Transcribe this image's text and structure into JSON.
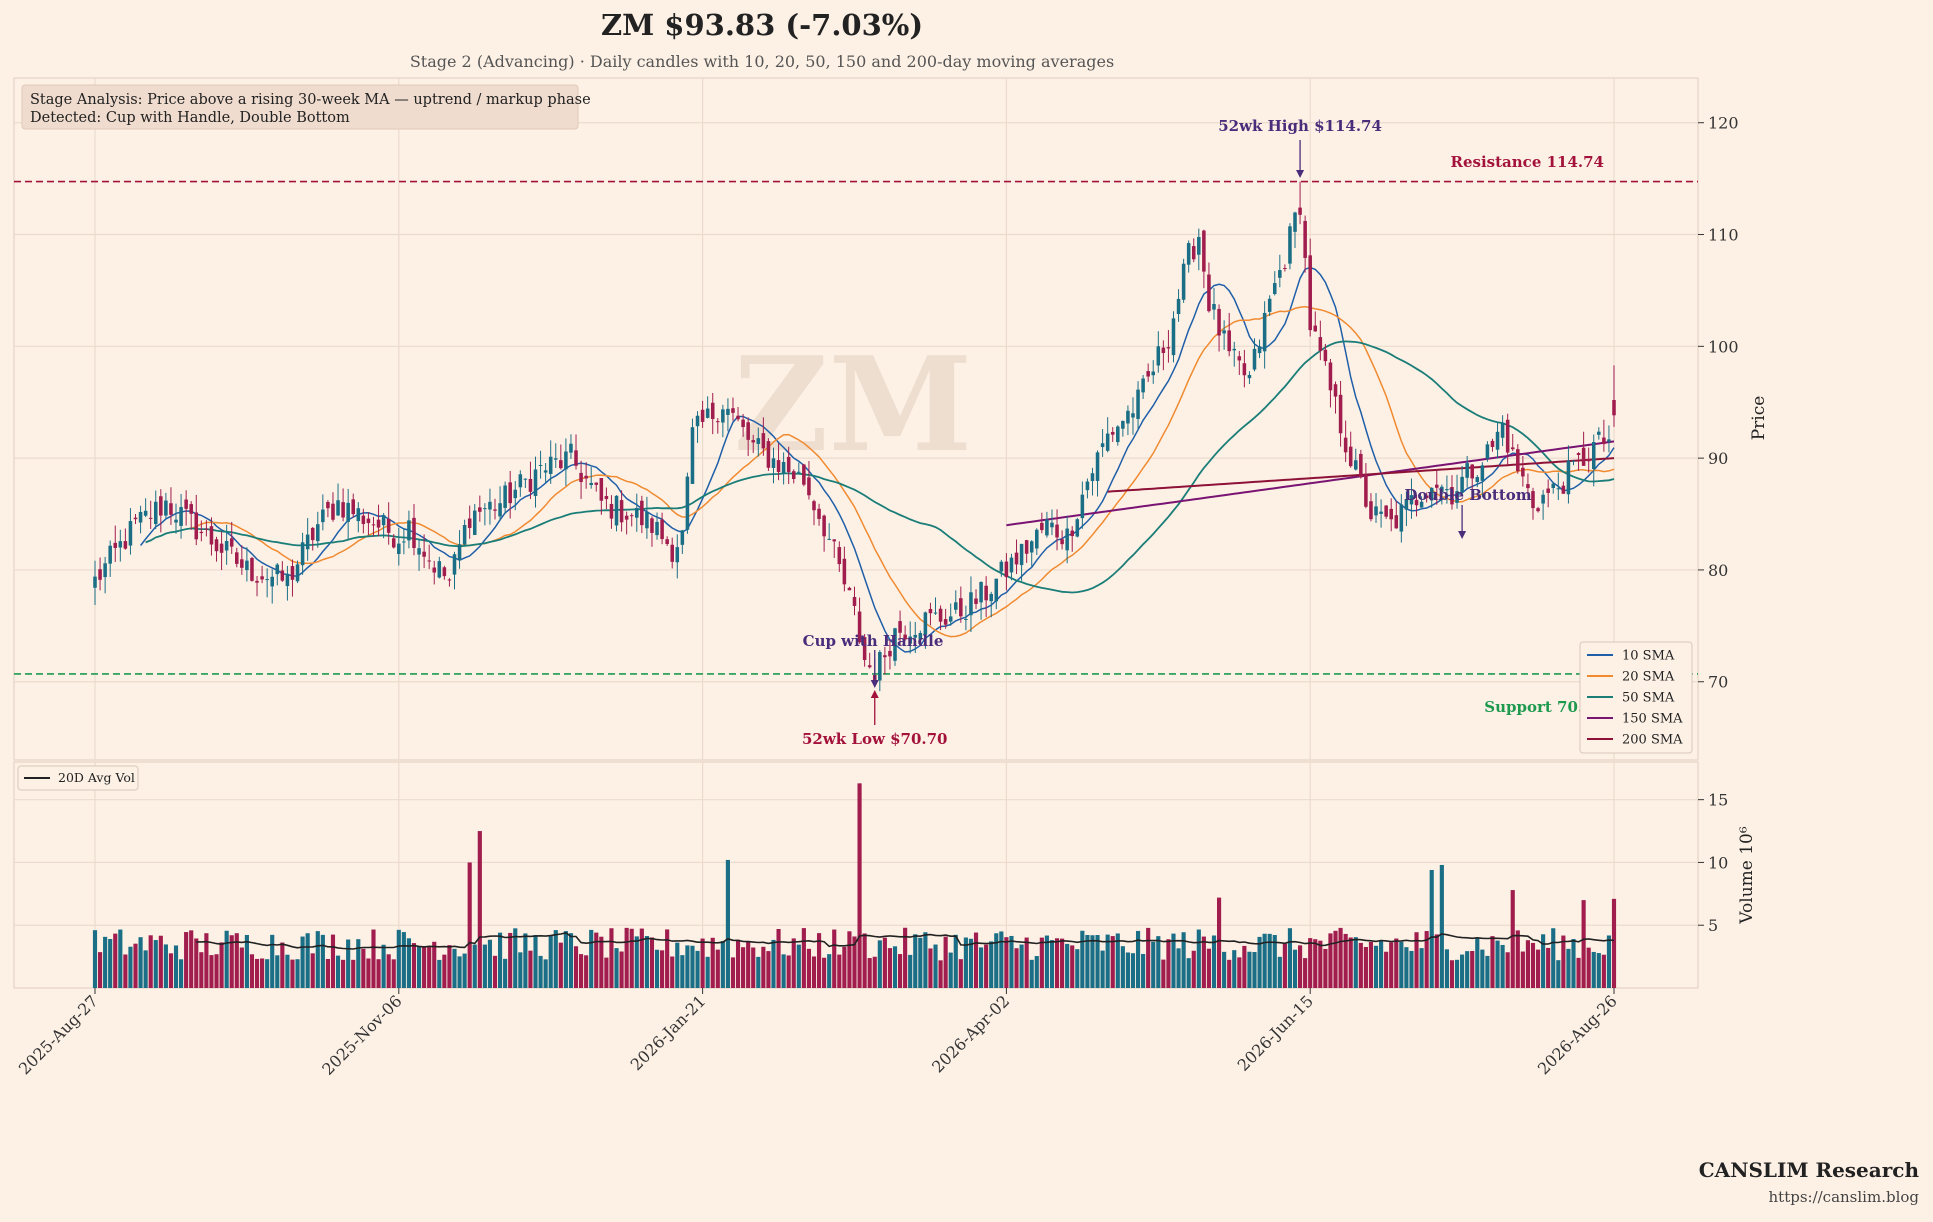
{
  "header": {
    "title": "ZM  $93.83  (-7.03%)",
    "subtitle": "Stage 2 (Advancing)  ·  Daily candles with 10, 20, 50, 150 and 200-day moving averages"
  },
  "stage_box": {
    "line1": "Stage Analysis: Price above a rising 30-week MA — uptrend / markup phase",
    "line2": "Detected: Cup with Handle, Double Bottom"
  },
  "watermark": "ZM",
  "footer": {
    "brand": "CANSLIM Research",
    "url": "https://canslim.blog"
  },
  "colors": {
    "background": "#fdf1e6",
    "up_candle": "#1a6f86",
    "down_candle": "#a01d4e",
    "sma10": "#1f5fa8",
    "sma20": "#f08a30",
    "sma50": "#1a7d78",
    "sma150": "#7a1473",
    "sma200": "#8e1238",
    "resistance": "#a3123b",
    "support": "#1e9a4f",
    "annotation": "#4a2d7a",
    "avg_vol": "#222222"
  },
  "chart_data": {
    "type": "candlestick",
    "ticker": "ZM",
    "price_axis": {
      "label": "Price",
      "ylim": [
        63,
        124
      ],
      "ticks": [
        70,
        80,
        90,
        100,
        110,
        120
      ]
    },
    "volume_axis": {
      "label": "Volume 10⁶",
      "ylim": [
        0,
        18
      ],
      "ticks": [
        5,
        10,
        15
      ],
      "unit": "millions"
    },
    "x_ticks": [
      "2025-Aug-27",
      "2025-Nov-06",
      "2026-Jan-21",
      "2026-Apr-02",
      "2026-Jun-15",
      "2026-Aug-26"
    ],
    "x_tick_index": [
      0,
      50,
      100,
      150,
      200,
      250
    ],
    "n_sessions": 251,
    "price_anchors": [
      [
        0,
        79
      ],
      [
        8,
        84
      ],
      [
        14,
        86
      ],
      [
        22,
        83
      ],
      [
        30,
        80
      ],
      [
        38,
        79
      ],
      [
        44,
        84
      ],
      [
        48,
        86
      ],
      [
        56,
        84
      ],
      [
        60,
        83
      ],
      [
        62,
        84
      ],
      [
        66,
        81
      ],
      [
        70,
        79
      ],
      [
        74,
        85
      ],
      [
        80,
        86
      ],
      [
        88,
        89
      ],
      [
        94,
        90
      ],
      [
        100,
        86
      ],
      [
        106,
        85
      ],
      [
        110,
        84
      ],
      [
        114,
        82
      ],
      [
        116,
        83
      ],
      [
        118,
        92
      ],
      [
        124,
        95
      ],
      [
        130,
        91
      ],
      [
        140,
        88
      ],
      [
        144,
        84
      ],
      [
        150,
        76
      ],
      [
        152,
        72
      ],
      [
        154,
        70.7
      ],
      [
        158,
        74.5
      ],
      [
        164,
        75.5
      ],
      [
        170,
        76
      ],
      [
        176,
        78
      ],
      [
        180,
        80
      ],
      [
        184,
        82
      ],
      [
        188,
        84
      ],
      [
        192,
        83
      ],
      [
        196,
        88
      ],
      [
        200,
        92
      ],
      [
        206,
        95
      ],
      [
        212,
        101
      ],
      [
        216,
        108
      ],
      [
        218,
        110
      ],
      [
        220,
        104
      ],
      [
        224,
        99
      ],
      [
        228,
        97
      ],
      [
        232,
        104
      ],
      [
        235,
        108
      ],
      [
        238,
        113
      ],
      [
        240,
        102
      ],
      [
        244,
        96
      ],
      [
        248,
        90
      ],
      [
        252,
        85
      ],
      [
        256,
        84
      ],
      [
        260,
        86
      ],
      [
        264,
        88
      ],
      [
        268,
        87
      ],
      [
        272,
        89
      ],
      [
        276,
        91
      ],
      [
        278,
        93
      ],
      [
        280,
        90
      ],
      [
        284,
        86
      ],
      [
        288,
        87
      ],
      [
        292,
        89
      ],
      [
        296,
        91
      ],
      [
        300,
        92
      ]
    ],
    "last_price": 93.83,
    "change_pct": -7.03,
    "high_52wk": 114.74,
    "low_52wk": 70.7,
    "resistance": 114.74,
    "support": 70.7,
    "series": [
      {
        "name": "10 SMA"
      },
      {
        "name": "20 SMA"
      },
      {
        "name": "50 SMA"
      },
      {
        "name": "150 SMA"
      },
      {
        "name": "200 SMA"
      }
    ],
    "volume_legend": "20D Avg Vol",
    "annotations": {
      "high": "52wk High $114.74",
      "low": "52wk Low $70.70",
      "resistance": "Resistance 114.74",
      "support": "Support 70.70",
      "cup": "Cup with Handle",
      "double_bottom": "Double Bottom"
    },
    "volume_spikes": [
      [
        62,
        10
      ],
      [
        63,
        12.5
      ],
      [
        104,
        10.2
      ],
      [
        126,
        16.3
      ],
      [
        185,
        7.2
      ],
      [
        220,
        9.4
      ],
      [
        222,
        9.8
      ],
      [
        233,
        7.8
      ],
      [
        245,
        7.0
      ],
      [
        250,
        7.1
      ]
    ]
  }
}
